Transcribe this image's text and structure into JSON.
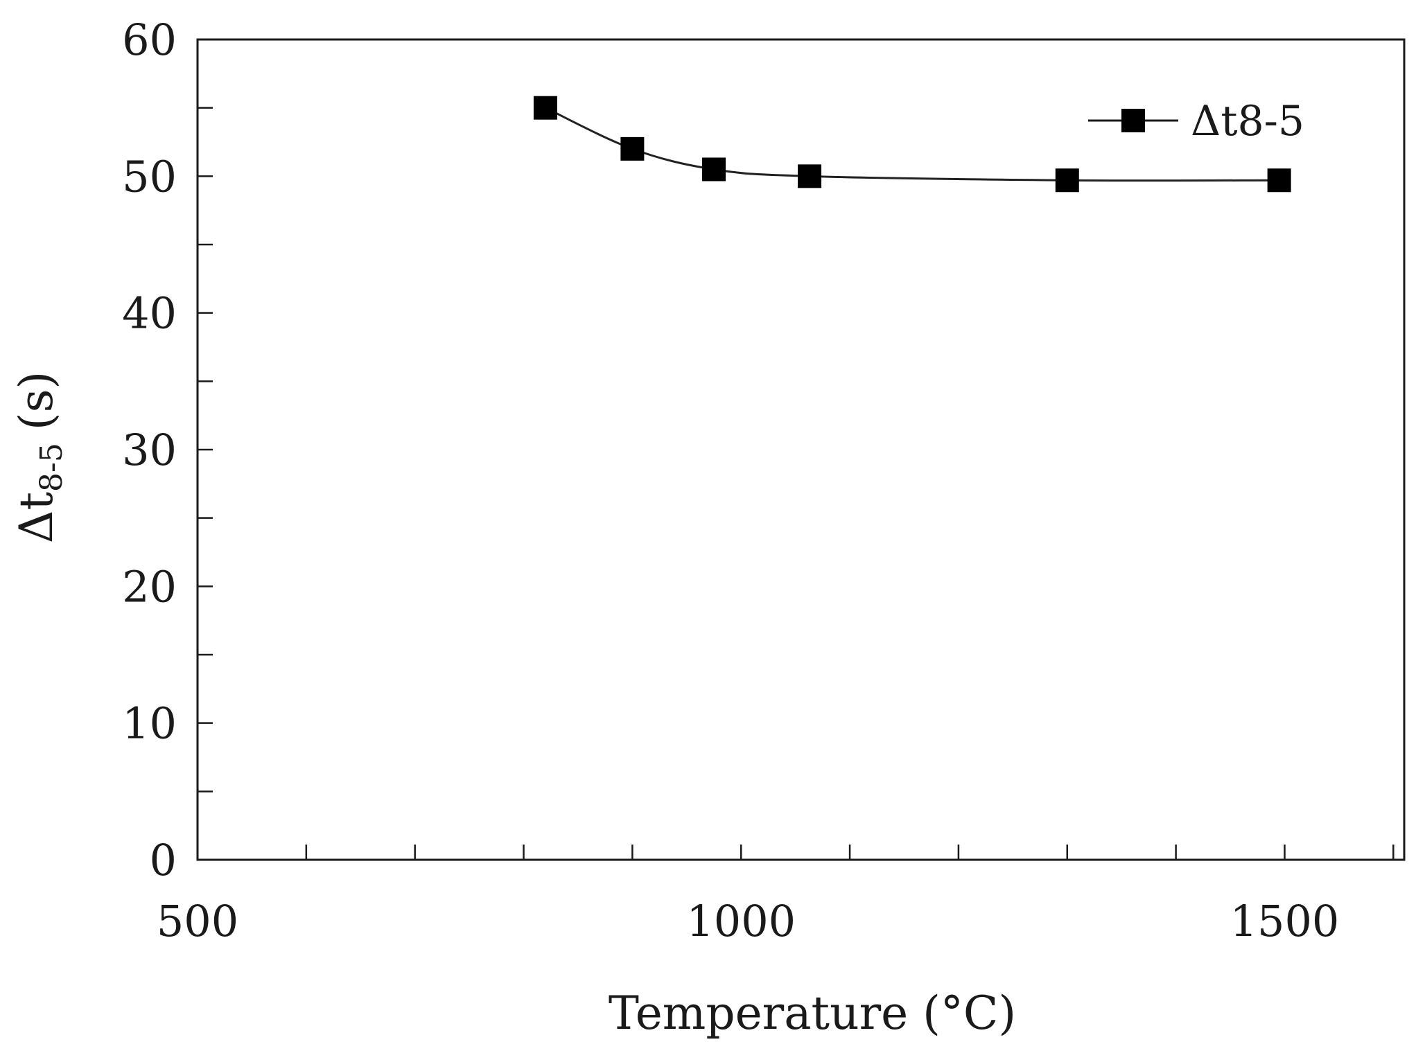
{
  "chart_data": {
    "type": "line",
    "title": "",
    "xlabel": "Temperature (°C)",
    "ylabel_main": "Δt",
    "ylabel_sub": "8-5",
    "ylabel_unit": "(s)",
    "xlim": [
      500,
      1610
    ],
    "ylim": [
      0,
      60
    ],
    "xticks": [
      500,
      1000,
      1500
    ],
    "xtick_labels": [
      "500",
      "1000",
      "1500"
    ],
    "x_minor_step": 100,
    "yticks": [
      0,
      10,
      20,
      30,
      40,
      50,
      60
    ],
    "ytick_labels": [
      "0",
      "10",
      "20",
      "30",
      "40",
      "50",
      "60"
    ],
    "y_minor_step": 5,
    "grid": false,
    "legend_position": "top-right",
    "series": [
      {
        "name": "Δt8-5",
        "marker": "square",
        "color": "#000000",
        "x": [
          820,
          900,
          975,
          1063,
          1300,
          1495
        ],
        "y": [
          55.0,
          52.0,
          50.5,
          50.0,
          49.7,
          49.7
        ]
      }
    ]
  }
}
